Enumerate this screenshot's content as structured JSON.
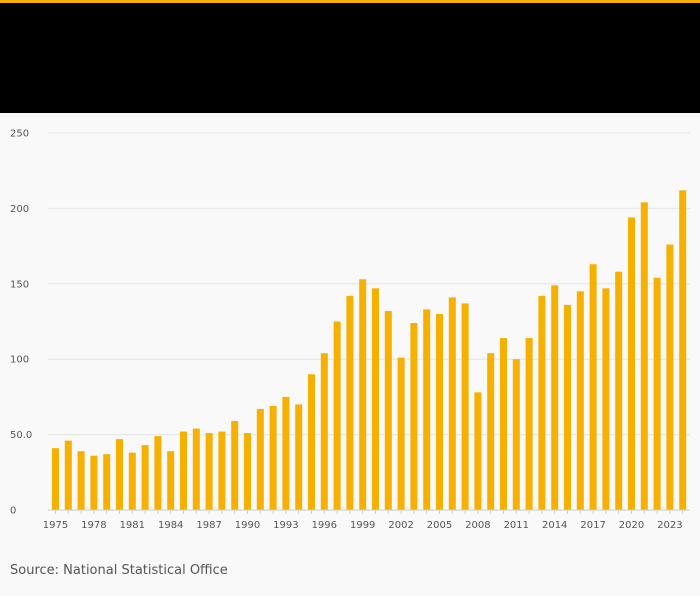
{
  "source_text": "Source: National Statistical Office",
  "colors": {
    "bar": "#f5b000",
    "header": "#000000",
    "accent": "#f5b000",
    "grid": "#e4e4e4",
    "background": "#f9f9f9"
  },
  "chart_data": {
    "type": "bar",
    "title": "",
    "xlabel": "",
    "ylabel": "",
    "ylim": [
      0,
      250
    ],
    "yticks": [
      0,
      50,
      100,
      150,
      200,
      250
    ],
    "ytick_labels": [
      "0",
      "50.0",
      "100",
      "150",
      "200",
      "250"
    ],
    "grid": true,
    "categories": [
      1975,
      1976,
      1977,
      1978,
      1979,
      1980,
      1981,
      1982,
      1983,
      1984,
      1985,
      1986,
      1987,
      1988,
      1989,
      1990,
      1991,
      1992,
      1993,
      1994,
      1995,
      1996,
      1997,
      1998,
      1999,
      2000,
      2001,
      2002,
      2003,
      2004,
      2005,
      2006,
      2007,
      2008,
      2009,
      2010,
      2011,
      2012,
      2013,
      2014,
      2015,
      2016,
      2017,
      2018,
      2019,
      2020,
      2021,
      2022,
      2023,
      2024
    ],
    "xtick_labels": [
      "1975",
      "1978",
      "1981",
      "1984",
      "1987",
      "1990",
      "1993",
      "1996",
      "1999",
      "2002",
      "2005",
      "2008",
      "2011",
      "2014",
      "2017",
      "2020",
      "2023"
    ],
    "values": [
      41,
      46,
      39,
      36,
      37,
      47,
      38,
      43,
      49,
      39,
      52,
      54,
      51,
      52,
      59,
      51,
      67,
      69,
      75,
      70,
      90,
      104,
      125,
      142,
      153,
      147,
      132,
      101,
      124,
      133,
      130,
      141,
      137,
      78,
      104,
      114,
      100,
      114,
      142,
      149,
      136,
      145,
      163,
      147,
      158,
      194,
      204,
      154,
      176,
      212
    ]
  }
}
